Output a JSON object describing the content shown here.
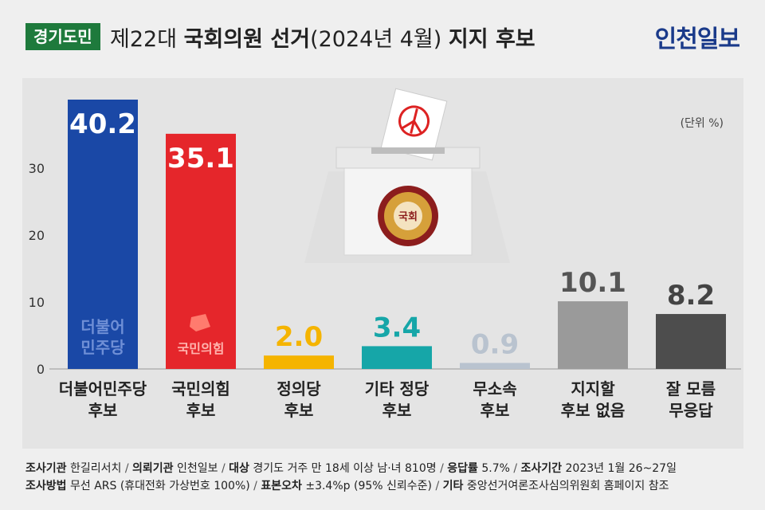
{
  "header": {
    "tag": "경기도민",
    "title_prefix": "제22대 ",
    "title_bold": "국회의원 선거",
    "title_paren": "(2024년 4월) ",
    "title_suffix": "지지 후보",
    "brand": "인천일보"
  },
  "chart_data": {
    "type": "bar",
    "categories": [
      "더불어민주당 후보",
      "국민의힘 후보",
      "정의당 후보",
      "기타 정당 후보",
      "무소속 후보",
      "지지할 후보 없음",
      "잘 모름 무응답"
    ],
    "category_lines": [
      [
        "더불어민주당",
        "후보"
      ],
      [
        "국민의힘",
        "후보"
      ],
      [
        "정의당",
        "후보"
      ],
      [
        "기타 정당",
        "후보"
      ],
      [
        "무소속",
        "후보"
      ],
      [
        "지지할",
        "후보 없음"
      ],
      [
        "잘 모름",
        "무응답"
      ]
    ],
    "values": [
      40.2,
      35.1,
      2.0,
      3.4,
      0.9,
      10.1,
      8.2
    ],
    "value_labels": [
      "40.2",
      "35.1",
      "2.0",
      "3.4",
      "0.9",
      "10.1",
      "8.2"
    ],
    "colors": [
      "#1a48a6",
      "#e5262b",
      "#f5b400",
      "#16a6a8",
      "#b9c3cf",
      "#9a9a9a",
      "#4d4d4d"
    ],
    "label_colors": [
      "#ffffff",
      "#ffffff",
      "#f5b400",
      "#16a6a8",
      "#b9c3cf",
      "#555555",
      "#444444"
    ],
    "yticks": [
      0,
      10,
      20,
      30
    ],
    "ylim": [
      0,
      40.2
    ],
    "unit_note": "(단위 %)",
    "party_logos": [
      "더불어 민주당",
      "국민의힘"
    ],
    "grid": false
  },
  "illustration": {
    "emblem_text": "국회"
  },
  "footer": {
    "line1": [
      {
        "k": "조사기관",
        "v": " 한길리서치"
      },
      {
        "k": "의뢰기관",
        "v": " 인천일보"
      },
      {
        "k": "대상",
        "v": " 경기도 거주 만 18세 이상 남·녀 810명"
      },
      {
        "k": "응답률",
        "v": " 5.7%"
      },
      {
        "k": "조사기간",
        "v": " 2023년 1월 26~27일"
      }
    ],
    "line2": [
      {
        "k": "조사방법",
        "v": " 무선 ARS (휴대전화 가상번호 100%)"
      },
      {
        "k": "표본오차",
        "v": " ±3.4%p (95% 신뢰수준)"
      },
      {
        "k": "기타",
        "v": " 중앙선거여론조사심의위원회 홈페이지 참조"
      }
    ]
  }
}
